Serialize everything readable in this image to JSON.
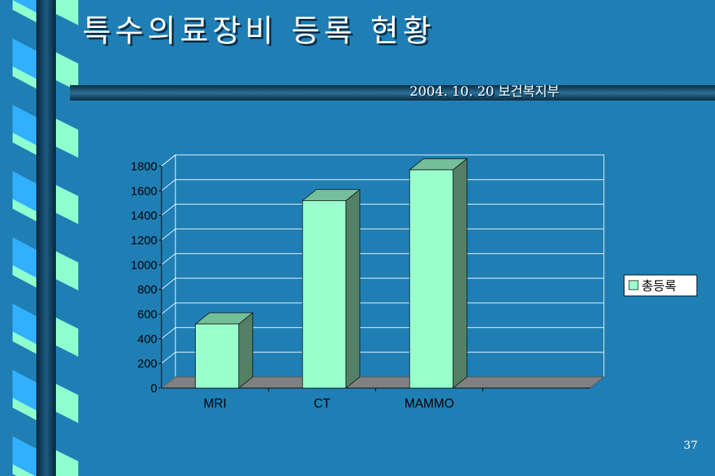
{
  "slide": {
    "title": "특수의료장비 등록 현황",
    "subtitle": "2004. 10. 20 보건복지부",
    "page_number": "37"
  },
  "colors": {
    "background": "#1f7fb5",
    "bar_front": "#99ffcc",
    "bar_side": "#548066",
    "bar_top": "#73bf99",
    "floor": "#808080",
    "grid": "#ffffff",
    "spine_dark": "#0d3550",
    "ribbon_green": "#8fffd0",
    "ribbon_blue": "#30b0ff"
  },
  "chart_data": {
    "type": "bar",
    "categories": [
      "MRI",
      "CT",
      "MAMMO"
    ],
    "series": [
      {
        "name": "총등록",
        "values": [
          520,
          1520,
          1770
        ]
      }
    ],
    "y_ticks": [
      "0",
      "200",
      "400",
      "600",
      "800",
      "1000",
      "1200",
      "1400",
      "1600",
      "1800"
    ],
    "ylim": [
      0,
      1800
    ],
    "grid": true,
    "legend_position": "right",
    "style": "3d-column"
  }
}
